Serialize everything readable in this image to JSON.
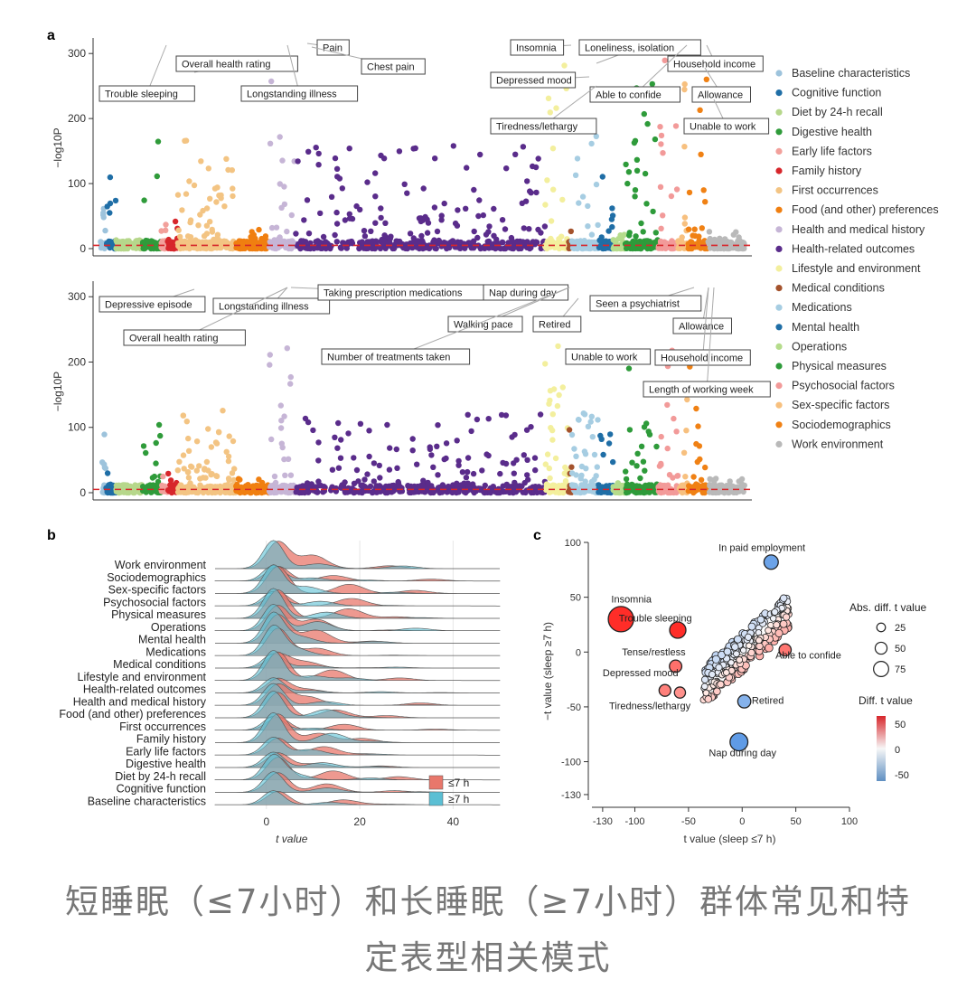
{
  "caption": {
    "line1": "短睡眠（≤7小时）和长睡眠（≥7小时）群体常见和特",
    "line2": "定表型相关模式"
  },
  "chart_data": [
    {
      "panel": "a",
      "type": "scatter",
      "subtype": "manhattan",
      "ylabel": "−log10P",
      "ylim": [
        0,
        310
      ],
      "yticks": [
        0,
        100,
        200,
        300
      ],
      "threshold": 5,
      "categories": [
        {
          "name": "Baseline characteristics",
          "color": "#9dc3dc"
        },
        {
          "name": "Cognitive function",
          "color": "#1f6ea6"
        },
        {
          "name": "Diet by 24-h recall",
          "color": "#b6d78b"
        },
        {
          "name": "Digestive health",
          "color": "#2f9b3a"
        },
        {
          "name": "Early life factors",
          "color": "#f2a09b"
        },
        {
          "name": "Family history",
          "color": "#d7262b"
        },
        {
          "name": "First occurrences",
          "color": "#f3c483"
        },
        {
          "name": "Food (and other) preferences",
          "color": "#f07f10"
        },
        {
          "name": "Health and medical history",
          "color": "#c6b5d6"
        },
        {
          "name": "Health-related outcomes",
          "color": "#5a2c8b"
        },
        {
          "name": "Lifestyle and environment",
          "color": "#f3ef9d"
        },
        {
          "name": "Medical conditions",
          "color": "#a4522c"
        },
        {
          "name": "Medications",
          "color": "#a6cde2"
        },
        {
          "name": "Mental health",
          "color": "#1f6ea6"
        },
        {
          "name": "Operations",
          "color": "#b5dc8c"
        },
        {
          "name": "Physical measures",
          "color": "#2e9b3a"
        },
        {
          "name": "Psychosocial factors",
          "color": "#f29a99"
        },
        {
          "name": "Sex-specific factors",
          "color": "#f7c07f"
        },
        {
          "name": "Sociodemographics",
          "color": "#f08114"
        },
        {
          "name": "Work environment",
          "color": "#b9b9b9"
        }
      ],
      "top_annotations": [
        "Trouble sleeping",
        "Overall health rating",
        "Longstanding illness",
        "Pain",
        "Chest pain",
        "Insomnia",
        "Loneliness, isolation",
        "Depressed mood",
        "Household income",
        "Able to confide",
        "Allowance",
        "Tiredness/lethargy",
        "Unable to work"
      ],
      "bottom_annotations": [
        "Depressive episode",
        "Longstanding illness",
        "Taking prescription medications",
        "Nap during day",
        "Overall health rating",
        "Walking pace",
        "Retired",
        "Seen a psychiatrist",
        "Number of treatments taken",
        "Unable to work",
        "Allowance",
        "Household income",
        "Length of working week"
      ]
    },
    {
      "panel": "b",
      "type": "area",
      "subtype": "ridgeline density",
      "xlabel": "t value",
      "xticks": [
        0,
        20,
        40
      ],
      "xlim": [
        -11,
        50
      ],
      "rows": [
        "Work environment",
        "Sociodemographics",
        "Sex-specific factors",
        "Psychosocial factors",
        "Physical measures",
        "Operations",
        "Mental health",
        "Medications",
        "Medical conditions",
        "Lifestyle and environment",
        "Health-related outcomes",
        "Health and medical history",
        "Food (and other) preferences",
        "First occurrences",
        "Family history",
        "Early life factors",
        "Digestive health",
        "Diet by 24-h recall",
        "Cognitive function",
        "Baseline characteristics"
      ],
      "series": [
        {
          "name": "≤7 h",
          "color": "#e8776b"
        },
        {
          "name": "≥7 h",
          "color": "#5bbfd4"
        }
      ]
    },
    {
      "panel": "c",
      "type": "scatter",
      "xlabel": "t value (sleep ≤7 h)",
      "ylabel": "−t value (sleep ≥7 h)",
      "xticks": [
        -130,
        -100,
        -50,
        0,
        50,
        100
      ],
      "yticks": [
        -130,
        -100,
        -50,
        0,
        50,
        100
      ],
      "xlim": [
        -140,
        100
      ],
      "ylim": [
        -135,
        100
      ],
      "size_legend_title": "Abs. diff. t value",
      "size_legend": [
        25,
        50,
        75
      ],
      "color_legend_title": "Diff. t value",
      "color_legend_ticks": [
        50,
        0,
        -50
      ],
      "labeled_points": [
        {
          "label": "In paid employment",
          "x": 27,
          "y": 82,
          "diff": -55
        },
        {
          "label": "Insomnia",
          "x": -113,
          "y": 30,
          "diff": 140
        },
        {
          "label": "Trouble sleeping",
          "x": -60,
          "y": 20,
          "diff": 70
        },
        {
          "label": "Tense/restless",
          "x": -62,
          "y": -13,
          "diff": 40
        },
        {
          "label": "Depressed mood",
          "x": -72,
          "y": -35,
          "diff": 35
        },
        {
          "label": "Tiredness/lethargy",
          "x": -58,
          "y": -37,
          "diff": 30
        },
        {
          "label": "Able to confide",
          "x": 40,
          "y": 2,
          "diff": 38
        },
        {
          "label": "Retired",
          "x": 2,
          "y": -45,
          "diff": -45
        },
        {
          "label": "Nap during day",
          "x": -3,
          "y": -82,
          "diff": -82
        }
      ]
    }
  ]
}
